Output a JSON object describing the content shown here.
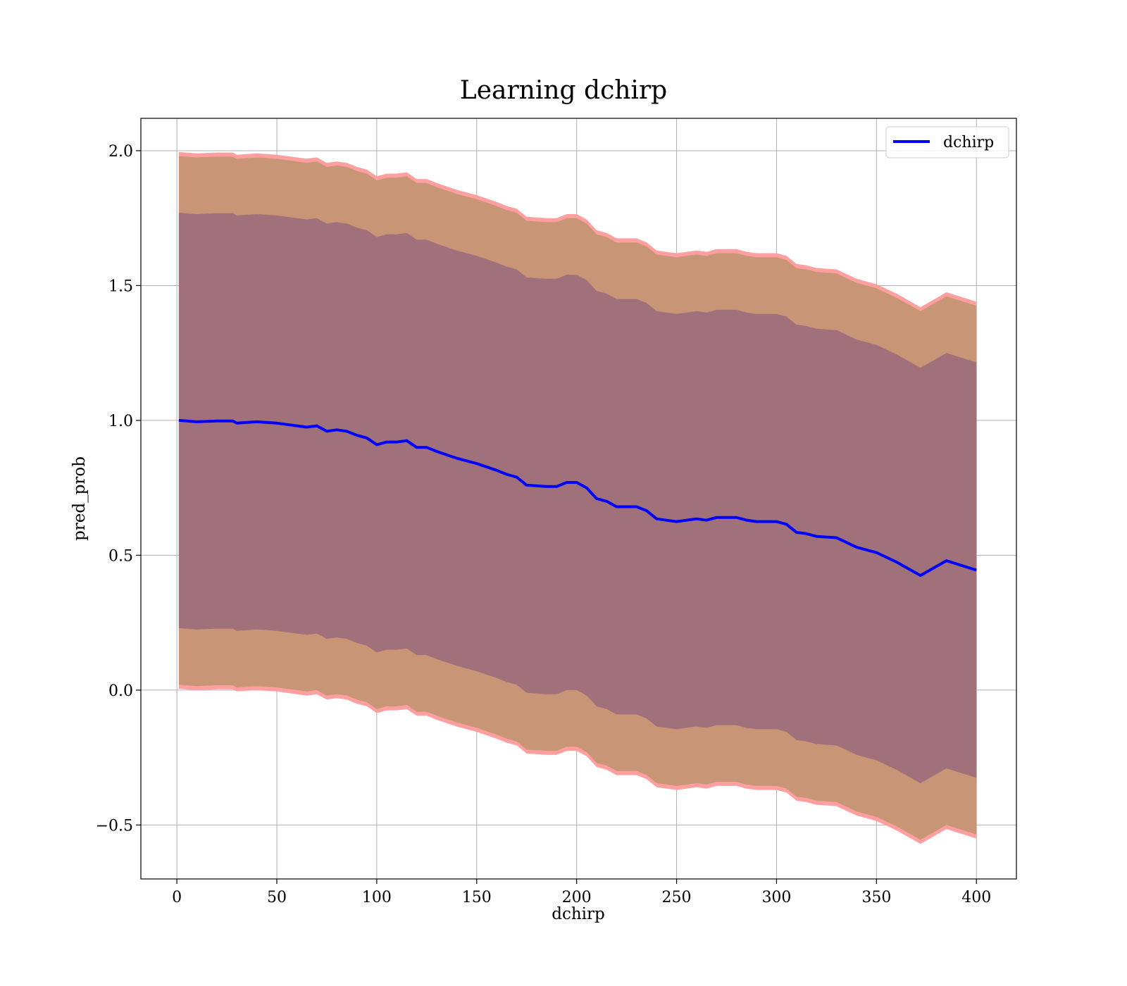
{
  "chart_data": {
    "type": "line",
    "title": "Learning dchirp",
    "xlabel": "dchirp",
    "ylabel": "pred_prob",
    "xlim": [
      -18,
      420
    ],
    "ylim": [
      -0.7,
      2.12
    ],
    "xticks": [
      0,
      50,
      100,
      150,
      200,
      250,
      300,
      350,
      400
    ],
    "yticks": [
      -0.5,
      0.0,
      0.5,
      1.0,
      1.5,
      2.0
    ],
    "xtick_labels": [
      "0",
      "50",
      "100",
      "150",
      "200",
      "250",
      "300",
      "350",
      "400"
    ],
    "ytick_labels": [
      "−0.5",
      "0.0",
      "0.5",
      "1.0",
      "1.5",
      "2.0"
    ],
    "grid": true,
    "legend_position": "top-right",
    "colors": {
      "line": "#0000ff",
      "outer_band": "#ff9f9f",
      "middle_band": "#c99577",
      "inner_band": "#a0717a",
      "grid": "#b0b0b0"
    },
    "band_offsets": {
      "inner": 0.77,
      "middle": 0.98,
      "outer": 0.995
    },
    "series": [
      {
        "name": "dchirp",
        "x": [
          1,
          10,
          20,
          28,
          30,
          40,
          50,
          55,
          60,
          65,
          70,
          75,
          80,
          85,
          90,
          95,
          100,
          105,
          110,
          115,
          120,
          125,
          130,
          140,
          150,
          160,
          165,
          170,
          175,
          185,
          190,
          195,
          200,
          205,
          210,
          215,
          220,
          230,
          235,
          240,
          250,
          255,
          260,
          265,
          270,
          280,
          285,
          290,
          300,
          305,
          310,
          315,
          320,
          330,
          340,
          345,
          350,
          360,
          372,
          385,
          400
        ],
        "y": [
          1.0,
          0.995,
          0.998,
          0.998,
          0.99,
          0.995,
          0.99,
          0.985,
          0.98,
          0.975,
          0.98,
          0.96,
          0.965,
          0.96,
          0.945,
          0.935,
          0.91,
          0.92,
          0.92,
          0.925,
          0.9,
          0.9,
          0.885,
          0.86,
          0.84,
          0.815,
          0.8,
          0.79,
          0.76,
          0.755,
          0.755,
          0.77,
          0.77,
          0.75,
          0.71,
          0.7,
          0.68,
          0.68,
          0.665,
          0.635,
          0.625,
          0.63,
          0.635,
          0.63,
          0.64,
          0.64,
          0.63,
          0.625,
          0.625,
          0.615,
          0.585,
          0.58,
          0.57,
          0.565,
          0.53,
          0.52,
          0.51,
          0.475,
          0.425,
          0.48,
          0.445
        ]
      }
    ]
  }
}
